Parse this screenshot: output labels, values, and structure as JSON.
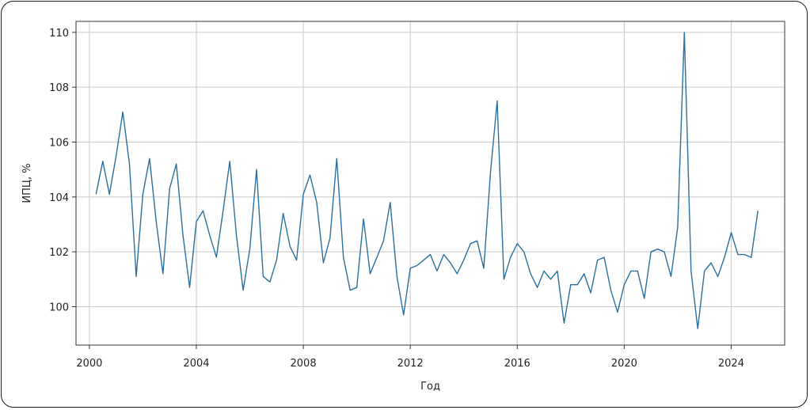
{
  "chart_data": {
    "type": "line",
    "title": "",
    "xlabel": "Год",
    "ylabel": "ИПЦ, %",
    "xlim": [
      1999.5,
      2026.0
    ],
    "ylim": [
      98.6,
      110.4
    ],
    "xticks": [
      2000,
      2004,
      2008,
      2012,
      2016,
      2020,
      2024
    ],
    "yticks": [
      100,
      102,
      104,
      106,
      108,
      110
    ],
    "grid": true,
    "line_color": "#2a6f9e",
    "series": [
      {
        "name": "",
        "x": [
          2000.25,
          2000.5,
          2000.75,
          2001.0,
          2001.25,
          2001.5,
          2001.75,
          2002.0,
          2002.25,
          2002.5,
          2002.75,
          2003.0,
          2003.25,
          2003.5,
          2003.75,
          2004.0,
          2004.25,
          2004.5,
          2004.75,
          2005.0,
          2005.25,
          2005.5,
          2005.75,
          2006.0,
          2006.25,
          2006.5,
          2006.75,
          2007.0,
          2007.25,
          2007.5,
          2007.75,
          2008.0,
          2008.25,
          2008.5,
          2008.75,
          2009.0,
          2009.25,
          2009.5,
          2009.75,
          2010.0,
          2010.25,
          2010.5,
          2010.75,
          2011.0,
          2011.25,
          2011.5,
          2011.75,
          2012.0,
          2012.25,
          2012.5,
          2012.75,
          2013.0,
          2013.25,
          2013.5,
          2013.75,
          2014.0,
          2014.25,
          2014.5,
          2014.75,
          2015.0,
          2015.25,
          2015.5,
          2015.75,
          2016.0,
          2016.25,
          2016.5,
          2016.75,
          2017.0,
          2017.25,
          2017.5,
          2017.75,
          2018.0,
          2018.25,
          2018.5,
          2018.75,
          2019.0,
          2019.25,
          2019.5,
          2019.75,
          2020.0,
          2020.25,
          2020.5,
          2020.75,
          2021.0,
          2021.25,
          2021.5,
          2021.75,
          2022.0,
          2022.25,
          2022.5,
          2022.75,
          2023.0,
          2023.25,
          2023.5,
          2023.75,
          2024.0,
          2024.25,
          2024.5,
          2024.75,
          2025.0
        ],
        "values": [
          104.1,
          105.3,
          104.1,
          105.5,
          107.1,
          105.2,
          101.1,
          104.1,
          105.4,
          103.1,
          101.2,
          104.3,
          105.2,
          102.6,
          100.7,
          103.1,
          103.5,
          102.6,
          101.8,
          103.5,
          105.3,
          102.6,
          100.6,
          102.1,
          105.0,
          101.1,
          100.9,
          101.7,
          103.4,
          102.2,
          101.7,
          104.1,
          104.8,
          103.8,
          101.6,
          102.5,
          105.4,
          101.8,
          100.6,
          100.7,
          103.2,
          101.2,
          101.8,
          102.4,
          103.8,
          101.1,
          99.7,
          101.4,
          101.5,
          101.7,
          101.9,
          101.3,
          101.9,
          101.6,
          101.2,
          101.7,
          102.3,
          102.4,
          101.4,
          104.9,
          107.5,
          101.0,
          101.8,
          102.3,
          102.0,
          101.2,
          100.7,
          101.3,
          101.0,
          101.3,
          99.4,
          100.8,
          100.8,
          101.2,
          100.5,
          101.7,
          101.8,
          100.6,
          99.8,
          100.8,
          101.3,
          101.3,
          100.3,
          102.0,
          102.1,
          102.0,
          101.1,
          102.9,
          110.0,
          101.3,
          99.2,
          101.3,
          101.6,
          101.1,
          101.8,
          102.7,
          101.9,
          101.9,
          101.8,
          103.5
        ]
      }
    ]
  }
}
